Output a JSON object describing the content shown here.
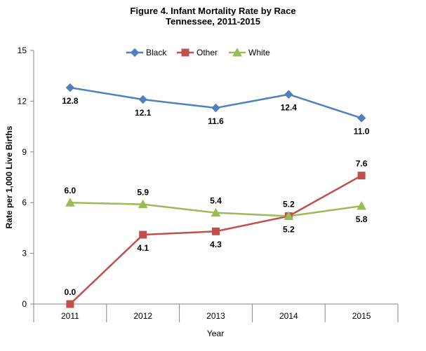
{
  "chart_data": {
    "type": "line",
    "title": "Figure 4. Infant Mortality Rate by Race",
    "subtitle": "Tennessee, 2011-2015",
    "xlabel": "Year",
    "ylabel": "Rate per 1,000 Live Births",
    "categories": [
      "2011",
      "2012",
      "2013",
      "2014",
      "2015"
    ],
    "ylim": [
      0,
      15
    ],
    "yticks": [
      0,
      3,
      6,
      9,
      12,
      15
    ],
    "grid": false,
    "legend_position": "top",
    "series": [
      {
        "name": "Black",
        "values": [
          12.8,
          12.1,
          11.6,
          12.4,
          11.0
        ],
        "labels": [
          "12.8",
          "12.1",
          "11.6",
          "12.4",
          "11.0"
        ],
        "color": "#4F81BD",
        "marker": "diamond"
      },
      {
        "name": "Other",
        "values": [
          0.0,
          4.1,
          4.3,
          5.2,
          7.6
        ],
        "labels": [
          "0.0",
          "4.1",
          "4.3",
          "5.2",
          "7.6"
        ],
        "color": "#C0504D",
        "marker": "square"
      },
      {
        "name": "White",
        "values": [
          6.0,
          5.9,
          5.4,
          5.2,
          5.8
        ],
        "labels": [
          "6.0",
          "5.9",
          "5.4",
          "5.2",
          "5.8"
        ],
        "color": "#9BBB59",
        "marker": "triangle"
      }
    ]
  }
}
